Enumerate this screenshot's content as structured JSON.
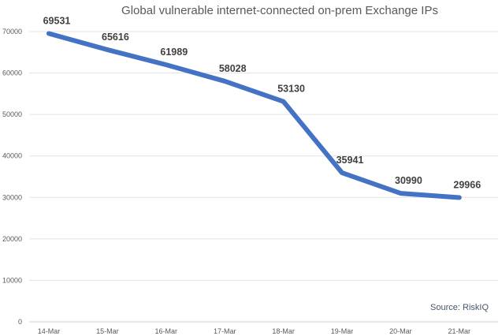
{
  "chart_data": {
    "type": "line",
    "title": "Global vulnerable internet-connected on-prem Exchange IPs",
    "categories": [
      "14-Mar",
      "15-Mar",
      "16-Mar",
      "17-Mar",
      "18-Mar",
      "19-Mar",
      "20-Mar",
      "21-Mar"
    ],
    "series": [
      {
        "values": [
          69531,
          65616,
          61989,
          58028,
          53130,
          35941,
          30990,
          29966
        ],
        "color": "#4472C4"
      }
    ],
    "data_labels": [
      "69531",
      "65616",
      "61989",
      "58028",
      "53130",
      "35941",
      "30990",
      "29966"
    ],
    "yticks": [
      "0",
      "10000",
      "20000",
      "30000",
      "40000",
      "50000",
      "60000",
      "70000"
    ],
    "ylim": [
      0,
      70000
    ],
    "grid": true,
    "legend": "none",
    "annotation": "Source: RiskIQ"
  }
}
